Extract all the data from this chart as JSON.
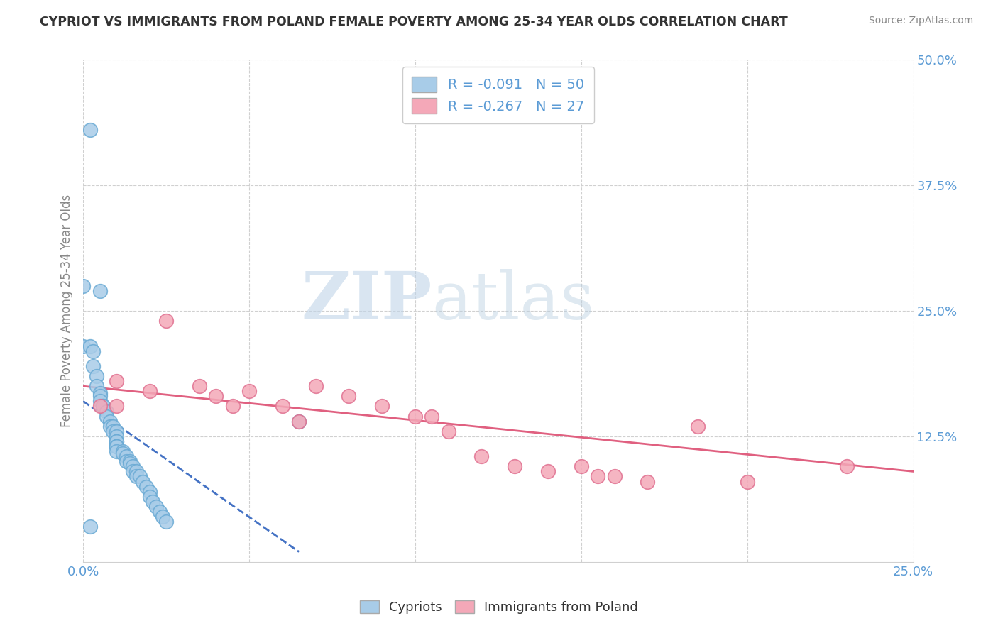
{
  "title": "CYPRIOT VS IMMIGRANTS FROM POLAND FEMALE POVERTY AMONG 25-34 YEAR OLDS CORRELATION CHART",
  "source": "Source: ZipAtlas.com",
  "ylabel": "Female Poverty Among 25-34 Year Olds",
  "xlim": [
    0.0,
    0.25
  ],
  "ylim": [
    0.0,
    0.5
  ],
  "yticks": [
    0.0,
    0.125,
    0.25,
    0.375,
    0.5
  ],
  "xticks": [
    0.0,
    0.05,
    0.1,
    0.15,
    0.2,
    0.25
  ],
  "legend1_label": "R = -0.091   N = 50",
  "legend2_label": "R = -0.267   N = 27",
  "legend_bottom": "Cypriots",
  "legend_bottom2": "Immigrants from Poland",
  "watermark_zip": "ZIP",
  "watermark_atlas": "atlas",
  "cypriot_color": "#a8cce8",
  "poland_color": "#f4a8b8",
  "cypriot_edge": "#6aaad4",
  "poland_edge": "#e07090",
  "cypriot_scatter_x": [
    0.002,
    0.005,
    0.0,
    0.0,
    0.002,
    0.003,
    0.003,
    0.004,
    0.004,
    0.005,
    0.005,
    0.005,
    0.006,
    0.006,
    0.007,
    0.007,
    0.008,
    0.008,
    0.009,
    0.009,
    0.01,
    0.01,
    0.01,
    0.01,
    0.01,
    0.01,
    0.01,
    0.01,
    0.012,
    0.012,
    0.013,
    0.013,
    0.014,
    0.014,
    0.015,
    0.015,
    0.016,
    0.016,
    0.017,
    0.018,
    0.019,
    0.02,
    0.02,
    0.021,
    0.022,
    0.023,
    0.024,
    0.025,
    0.065,
    0.002
  ],
  "cypriot_scatter_y": [
    0.43,
    0.27,
    0.275,
    0.215,
    0.215,
    0.21,
    0.195,
    0.185,
    0.175,
    0.168,
    0.165,
    0.16,
    0.155,
    0.155,
    0.15,
    0.145,
    0.14,
    0.135,
    0.135,
    0.13,
    0.13,
    0.125,
    0.12,
    0.12,
    0.115,
    0.115,
    0.115,
    0.11,
    0.11,
    0.108,
    0.105,
    0.1,
    0.1,
    0.098,
    0.095,
    0.09,
    0.09,
    0.085,
    0.085,
    0.08,
    0.075,
    0.07,
    0.065,
    0.06,
    0.055,
    0.05,
    0.045,
    0.04,
    0.14,
    0.035
  ],
  "poland_scatter_x": [
    0.005,
    0.01,
    0.01,
    0.02,
    0.025,
    0.035,
    0.04,
    0.045,
    0.05,
    0.06,
    0.065,
    0.07,
    0.08,
    0.09,
    0.1,
    0.105,
    0.11,
    0.12,
    0.13,
    0.14,
    0.15,
    0.155,
    0.16,
    0.17,
    0.185,
    0.2,
    0.23
  ],
  "poland_scatter_y": [
    0.155,
    0.155,
    0.18,
    0.17,
    0.24,
    0.175,
    0.165,
    0.155,
    0.17,
    0.155,
    0.14,
    0.175,
    0.165,
    0.155,
    0.145,
    0.145,
    0.13,
    0.105,
    0.095,
    0.09,
    0.095,
    0.085,
    0.085,
    0.08,
    0.135,
    0.08,
    0.095
  ],
  "cypriot_trend_x": [
    0.0,
    0.065
  ],
  "cypriot_trend_y": [
    0.16,
    0.01
  ],
  "poland_trend_x": [
    0.0,
    0.25
  ],
  "poland_trend_y": [
    0.175,
    0.09
  ],
  "background_color": "#ffffff",
  "grid_color": "#d0d0d0",
  "title_color": "#333333",
  "source_color": "#888888",
  "axis_label_color": "#888888",
  "tick_color": "#5b9bd5",
  "legend_r_color": "#5b9bd5",
  "legend_text_color": "#333333"
}
